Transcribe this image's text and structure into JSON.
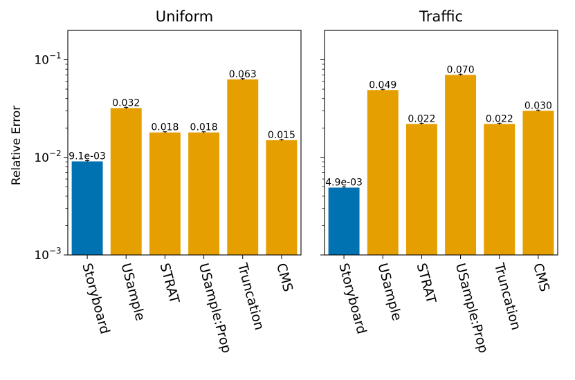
{
  "chart_data": [
    {
      "type": "bar",
      "title": "Uniform",
      "ylabel": "Relative Error",
      "yscale": "log",
      "ylim": [
        0.001,
        0.2
      ],
      "yticks": [
        {
          "value": 0.001,
          "base": "10",
          "exp": "−3"
        },
        {
          "value": 0.01,
          "base": "10",
          "exp": "−2"
        },
        {
          "value": 0.1,
          "base": "10",
          "exp": "−1"
        }
      ],
      "categories": [
        "Storyboard",
        "USample",
        "STRAT",
        "USample:Prop",
        "Truncation",
        "CMS"
      ],
      "values": [
        0.0091,
        0.032,
        0.018,
        0.018,
        0.063,
        0.015
      ],
      "labels": [
        "9.1e-03",
        "0.032",
        "0.018",
        "0.018",
        "0.063",
        "0.015"
      ],
      "colors": [
        "#0072b2",
        "#e69f00",
        "#e69f00",
        "#e69f00",
        "#e69f00",
        "#e69f00"
      ]
    },
    {
      "type": "bar",
      "title": "Traffic",
      "ylabel": "",
      "yscale": "log",
      "ylim": [
        0.001,
        0.2
      ],
      "categories": [
        "Storyboard",
        "USample",
        "STRAT",
        "USample:Prop",
        "Truncation",
        "CMS"
      ],
      "values": [
        0.0049,
        0.049,
        0.022,
        0.07,
        0.022,
        0.03
      ],
      "labels": [
        "4.9e-03",
        "0.049",
        "0.022",
        "0.070",
        "0.022",
        "0.030"
      ],
      "colors": [
        "#0072b2",
        "#e69f00",
        "#e69f00",
        "#e69f00",
        "#e69f00",
        "#e69f00"
      ]
    }
  ]
}
